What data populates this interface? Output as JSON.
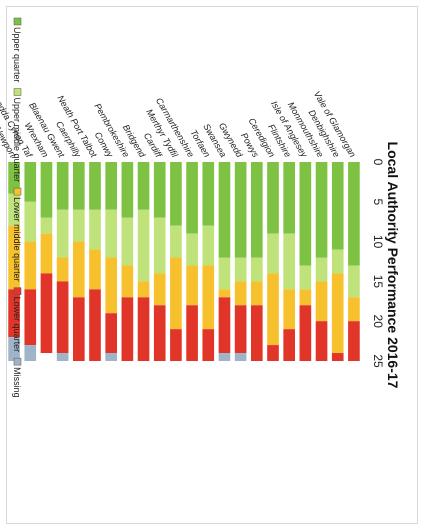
{
  "colors": {
    "upper_quarter": "#7dc242",
    "upper_middle_quarter": "#bfe27a",
    "lower_middle_quarter": "#f7c12d",
    "lower_quarter": "#e2352a",
    "missing": "#9fb4c8"
  },
  "chart_data": {
    "type": "bar",
    "orientation": "stacked-horizontal",
    "title": "Local Authority Performance 2016-17",
    "xlabel": "",
    "ylabel": "",
    "xlim": [
      0,
      25
    ],
    "xticks": [
      0,
      5,
      10,
      15,
      20,
      25
    ],
    "grid": false,
    "legend_position": "bottom",
    "categories": [
      "Vale of Glamorgan",
      "Denbighshire",
      "Monmouthshire",
      "Isle of Anglesey",
      "Flintshire",
      "Ceredigion",
      "Powys",
      "Gwynedd",
      "Swansea",
      "Torfaen",
      "Carmarthenshire",
      "Merthyr Tydfil",
      "Cardiff",
      "Bridgend",
      "Pembrokeshire",
      "Conwy",
      "Neath Port Talbot",
      "Caerphilly",
      "Blaenau Gwent",
      "Wrexham",
      "Rhondda Cynon Taf",
      "Newport"
    ],
    "series": [
      {
        "name": "Upper quarter",
        "color_key": "upper_quarter",
        "values": [
          13,
          11,
          12,
          13,
          9,
          9,
          12,
          12,
          12,
          8,
          9,
          8,
          7,
          6,
          7,
          6,
          6,
          6,
          6,
          7,
          5,
          4
        ]
      },
      {
        "name": "Upper middle quarter",
        "color_key": "upper_middle_quarter",
        "values": [
          4,
          3,
          3,
          3,
          7,
          5,
          3,
          3,
          4,
          5,
          4,
          4,
          7,
          9,
          6,
          6,
          5,
          4,
          6,
          2,
          5,
          4
        ]
      },
      {
        "name": "Lower middle quarter",
        "color_key": "lower_middle_quarter",
        "values": [
          3,
          10,
          5,
          2,
          5,
          9,
          3,
          3,
          1,
          8,
          5,
          9,
          4,
          2,
          4,
          7,
          5,
          7,
          3,
          5,
          6,
          8
        ]
      },
      {
        "name": "Lower quarter",
        "color_key": "lower_quarter",
        "values": [
          5,
          1,
          5,
          7,
          4,
          2,
          7,
          6,
          7,
          4,
          7,
          4,
          7,
          8,
          8,
          5,
          9,
          8,
          9,
          10,
          7,
          6
        ]
      },
      {
        "name": "Missing",
        "color_key": "missing",
        "values": [
          0,
          0,
          0,
          0,
          0,
          0,
          0,
          1,
          1,
          0,
          0,
          0,
          0,
          0,
          0,
          1,
          0,
          0,
          1,
          0,
          2,
          3
        ]
      }
    ],
    "legend": [
      "Upper quarter",
      "Upper middle quarter",
      "Lower middle quarter",
      "Lower quarter",
      "Missing"
    ]
  }
}
